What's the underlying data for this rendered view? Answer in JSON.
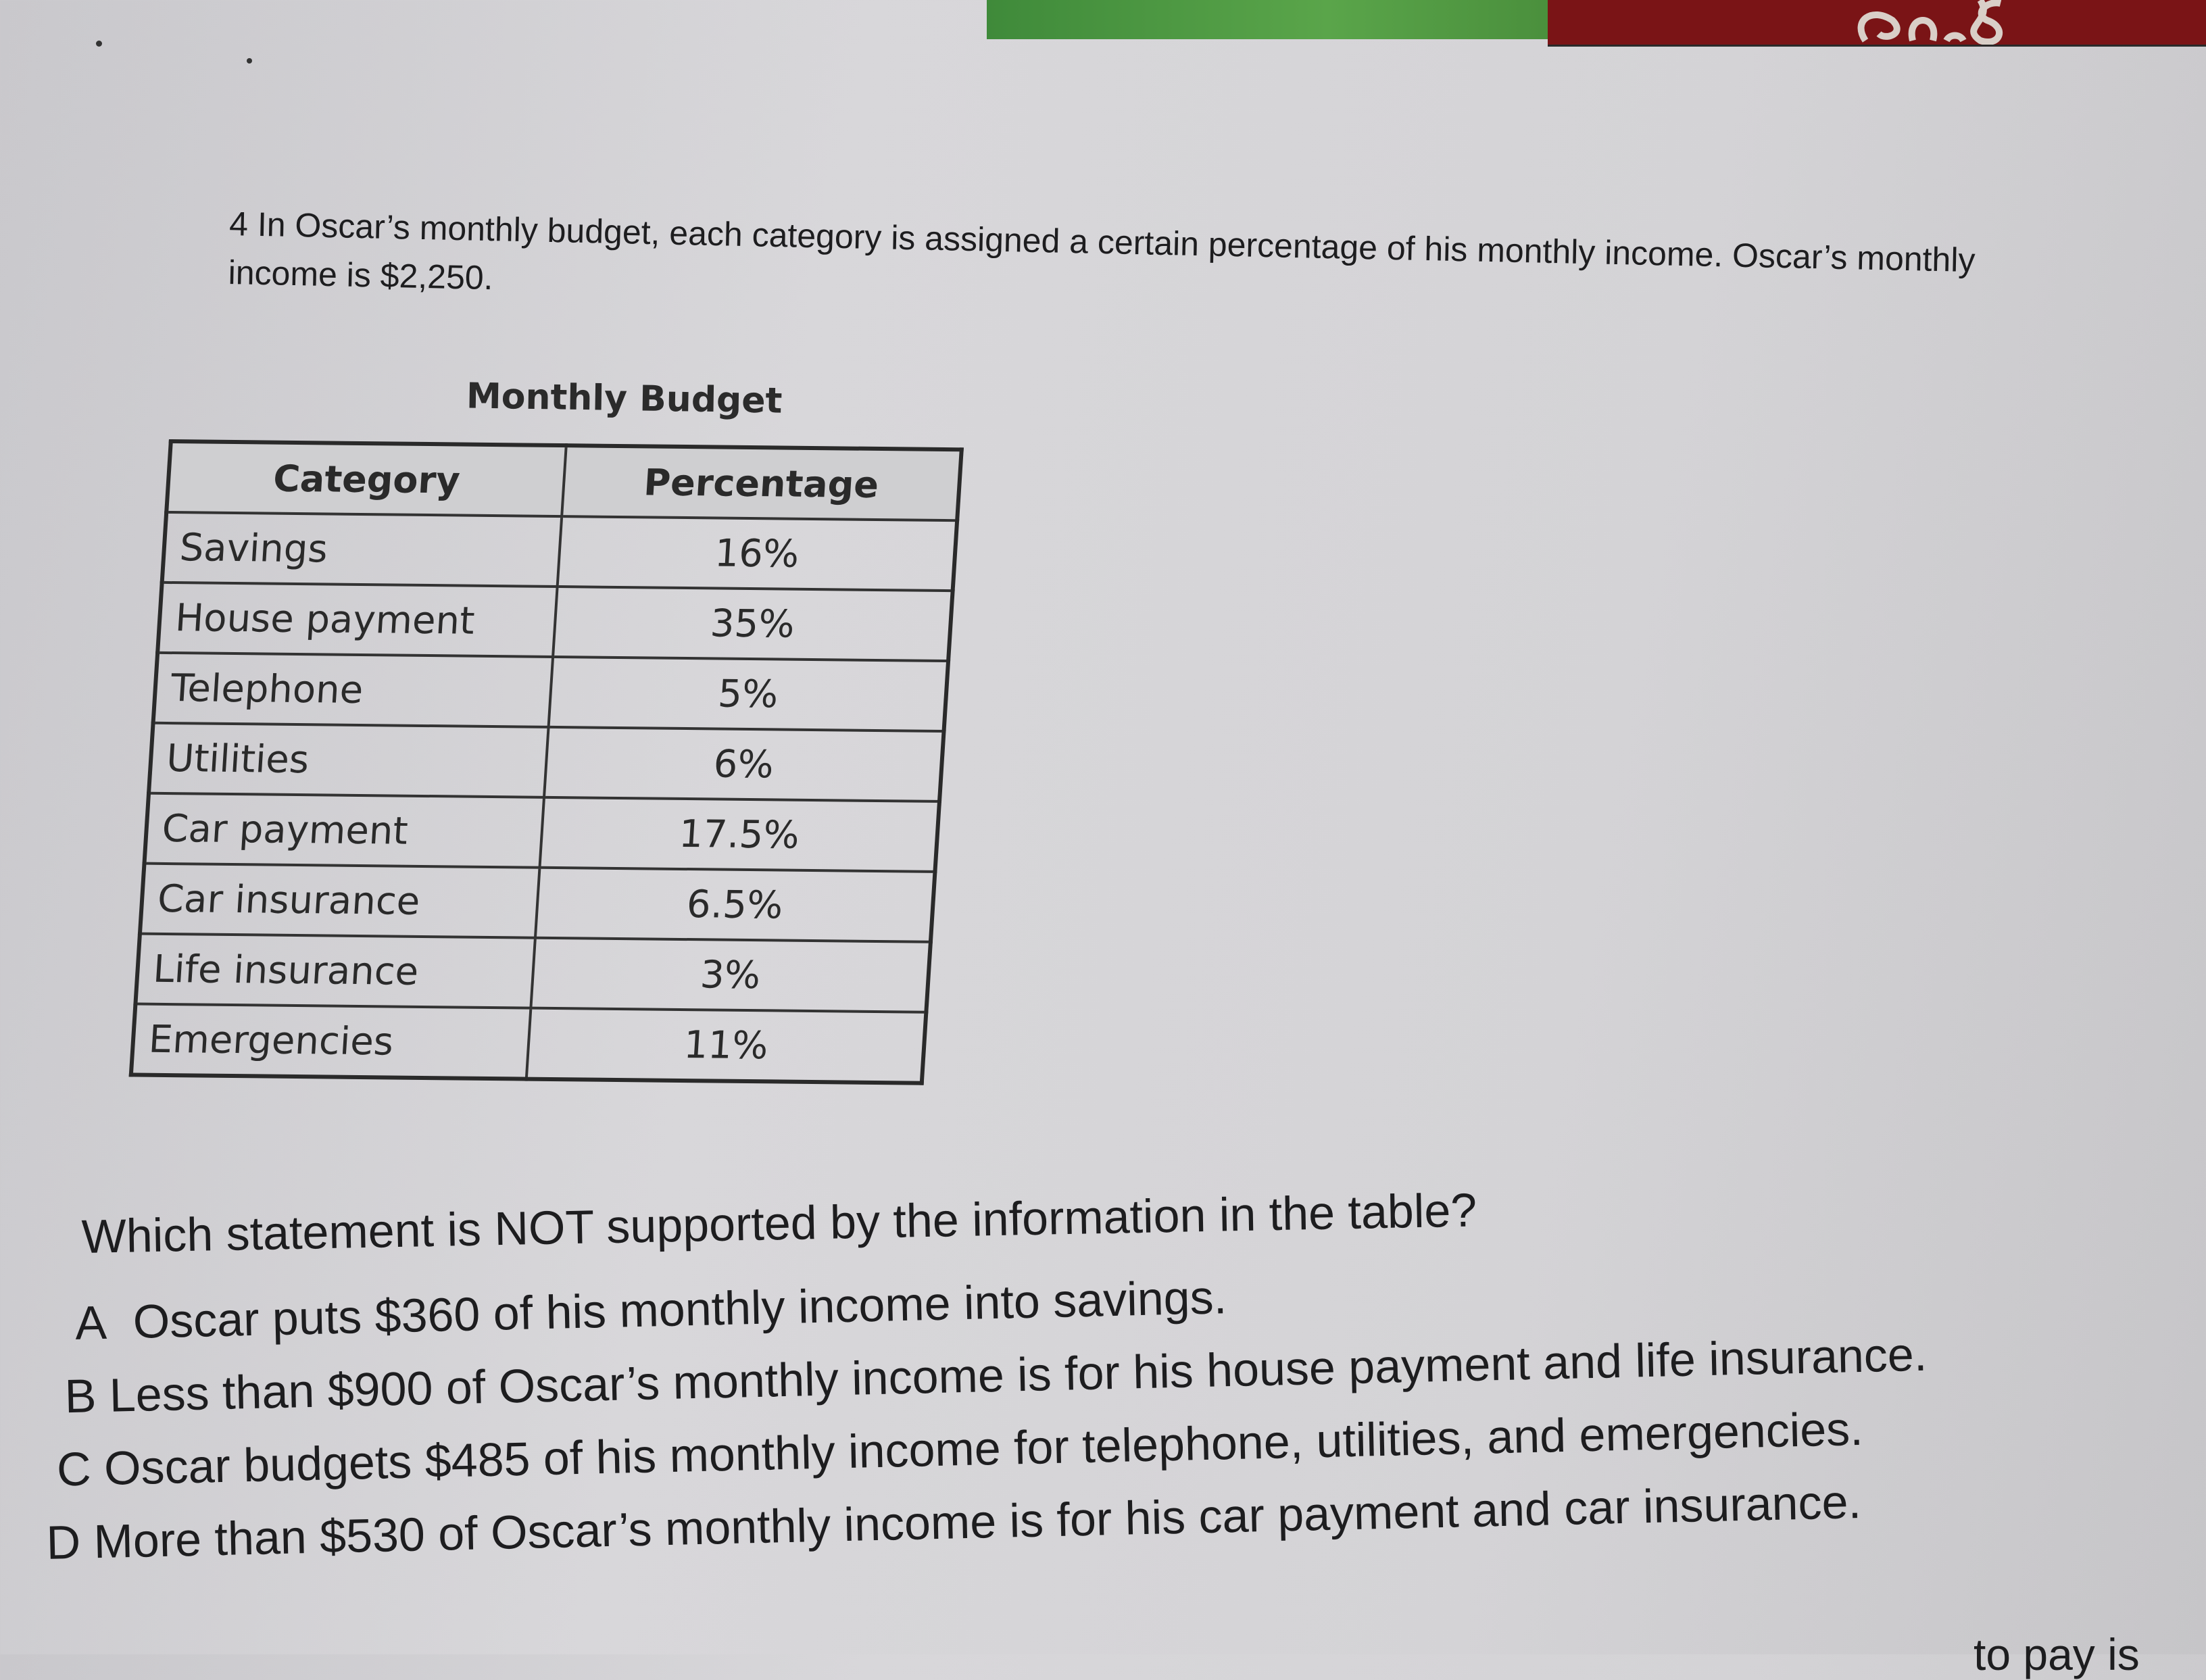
{
  "problem": {
    "number": "4",
    "text": "In Oscar’s monthly budget, each category is assigned a certain percentage of his monthly income. Oscar’s monthly income is $2,250."
  },
  "table": {
    "title": "Monthly Budget",
    "headers": [
      "Category",
      "Percentage"
    ],
    "rows": [
      {
        "category": "Savings",
        "percentage": "16%"
      },
      {
        "category": "House payment",
        "percentage": "35%"
      },
      {
        "category": "Telephone",
        "percentage": "5%"
      },
      {
        "category": "Utilities",
        "percentage": "6%"
      },
      {
        "category": "Car payment",
        "percentage": "17.5%"
      },
      {
        "category": "Car insurance",
        "percentage": "6.5%"
      },
      {
        "category": "Life insurance",
        "percentage": "3%"
      },
      {
        "category": "Emergencies",
        "percentage": "11%"
      }
    ]
  },
  "question": "Which statement is NOT supported by the information in the table?",
  "choices": [
    {
      "letter": "A",
      "text": "Oscar puts $360 of his monthly income into savings."
    },
    {
      "letter": "B",
      "text": "Less than $900 of Oscar’s monthly income is for his house payment and life insurance."
    },
    {
      "letter": "C",
      "text": "Oscar budgets $485 of his monthly income for telephone, utilities, and emergencies."
    },
    {
      "letter": "D",
      "text": "More than $530 of Oscar’s monthly income is for his car payment and car insurance."
    }
  ],
  "footer_partial": "to pay is",
  "colors": {
    "paper": "#d6d5d8",
    "ink": "#1d1d1f",
    "strip_red": "#7a1416",
    "strip_green": "#4f9a44"
  }
}
